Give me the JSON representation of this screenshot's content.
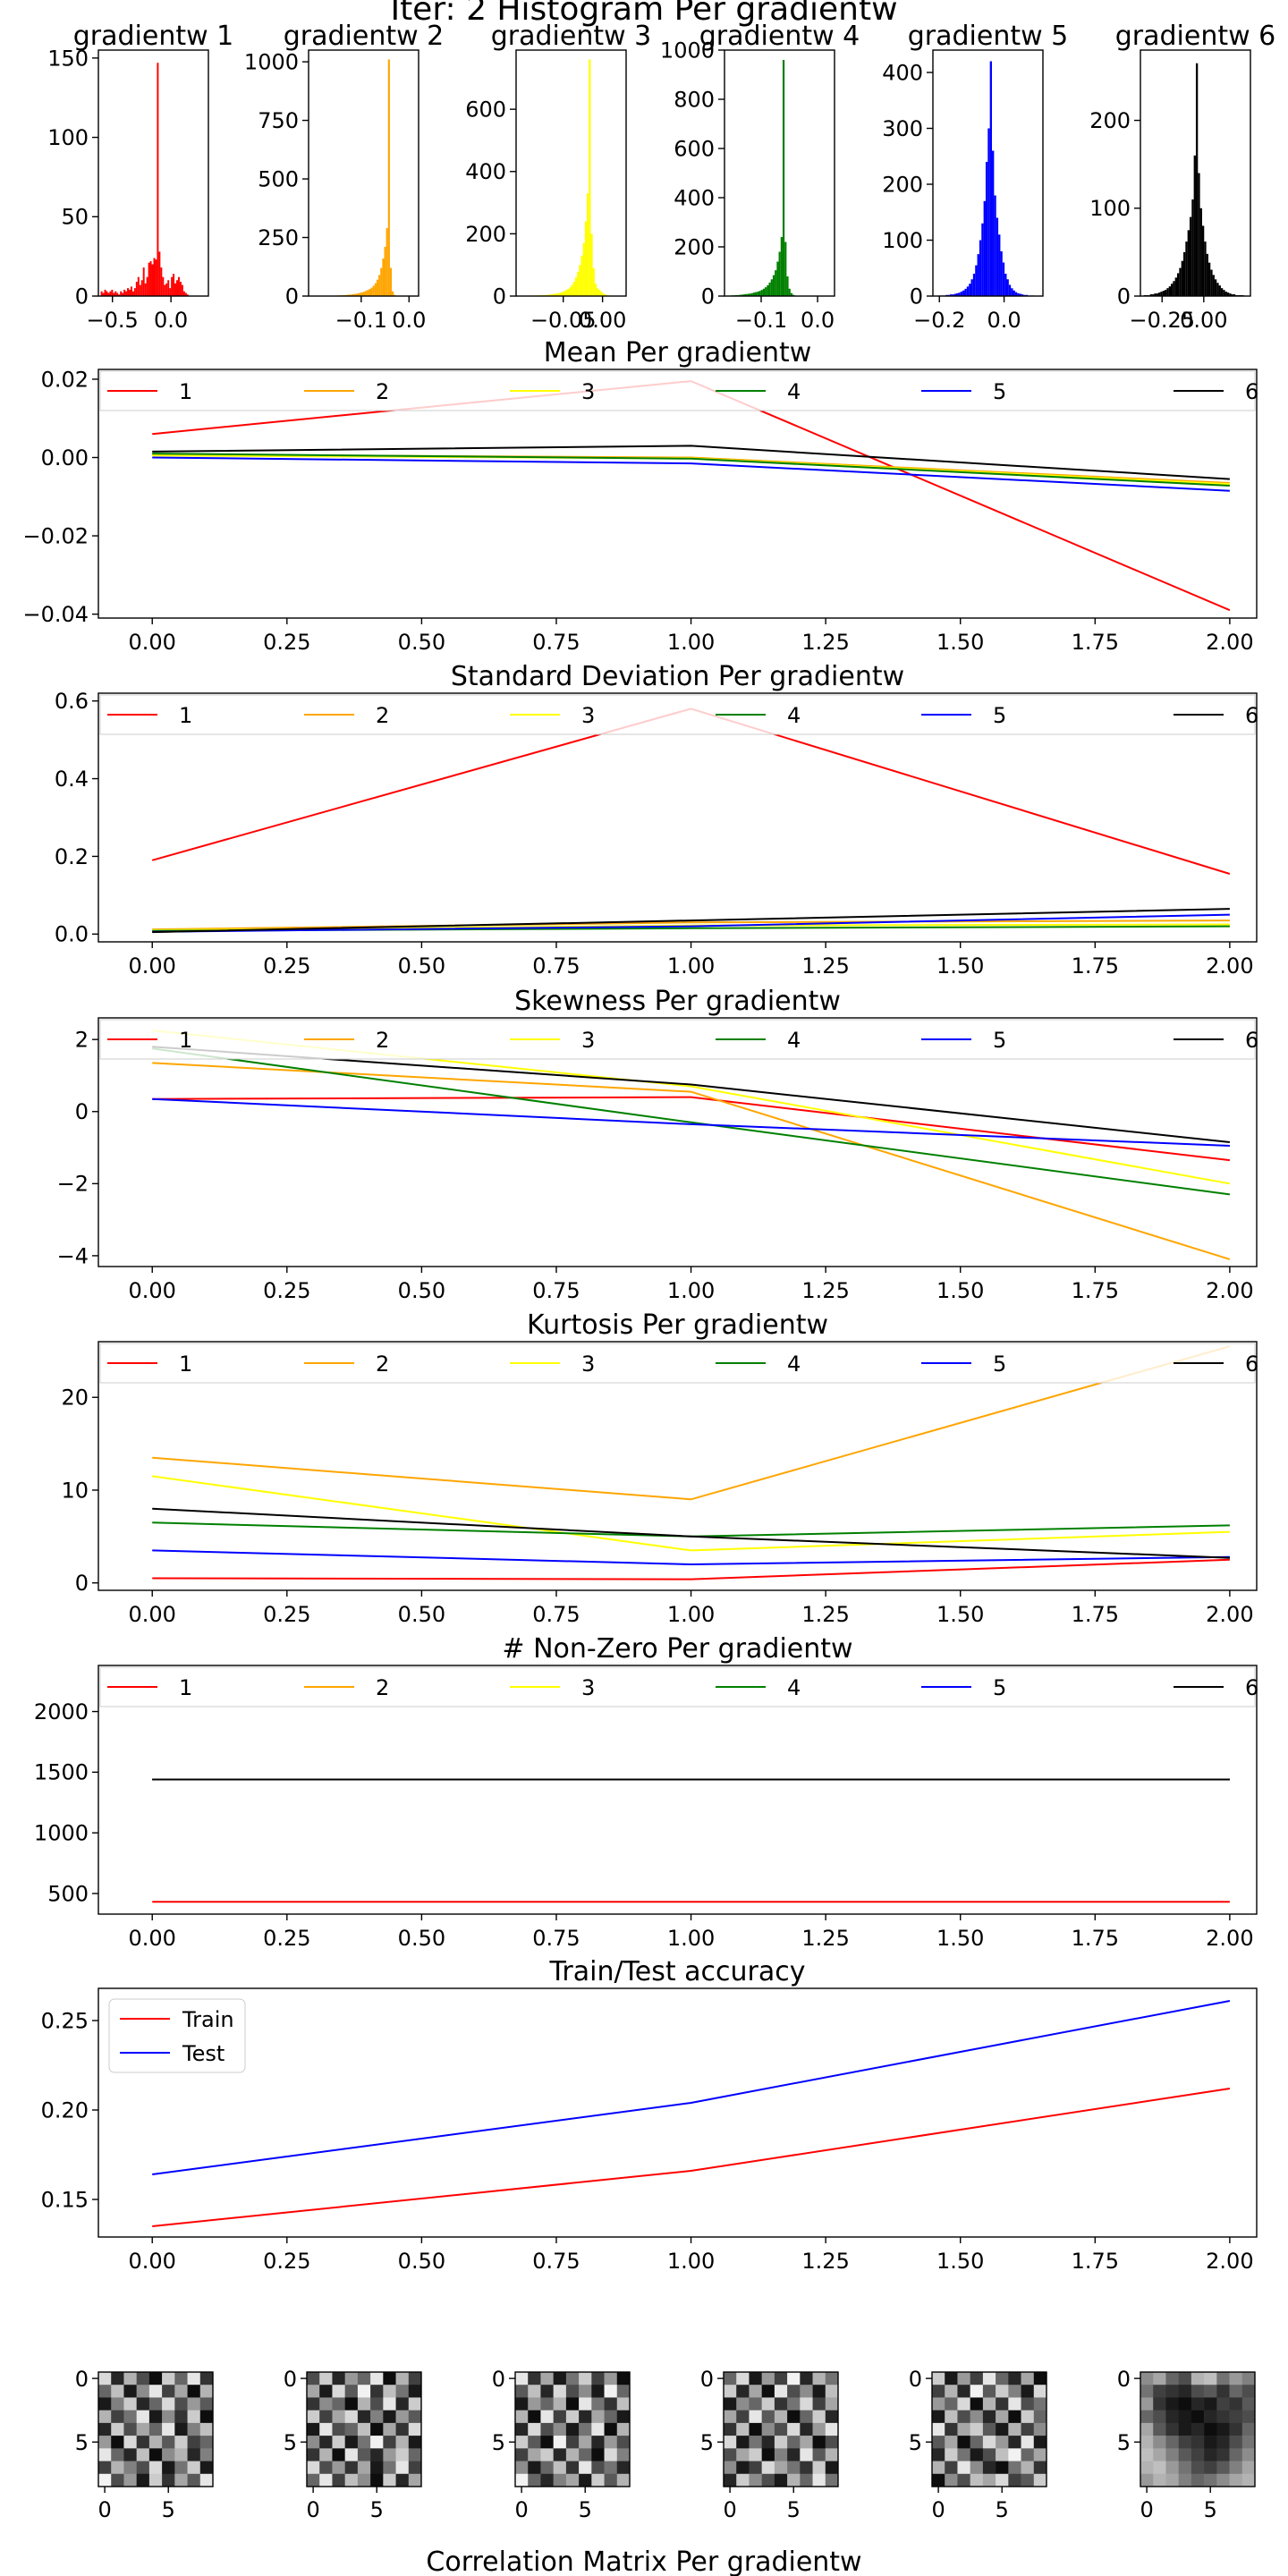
{
  "suptitle": "Iter: 2 Histogram Per gradientw",
  "footer_title": "Correlation Matrix Per gradientw",
  "colors": {
    "series": [
      "#ff0000",
      "#ffa500",
      "#ffff00",
      "#008000",
      "#0000ff",
      "#000000"
    ],
    "train": "#ff0000",
    "test": "#0000ff"
  },
  "chart_data": [
    {
      "type": "histogram",
      "title": "gradientw 1",
      "color": "#ff0000",
      "xlim": [
        -0.62,
        0.32
      ],
      "ylim": [
        0,
        155
      ],
      "xticks": [
        -0.5,
        0.0
      ],
      "xtick_labels": [
        "−0.5",
        "0.0"
      ],
      "yticks": [
        0,
        50,
        100,
        150
      ],
      "ytick_labels": [
        "0",
        "50",
        "100",
        "150"
      ],
      "bin_start": -0.6,
      "bin_width": 0.015,
      "counts": [
        3,
        2,
        4,
        3,
        2,
        3,
        4,
        2,
        3,
        2,
        1,
        3,
        2,
        4,
        3,
        5,
        4,
        6,
        3,
        5,
        9,
        12,
        7,
        10,
        18,
        8,
        12,
        21,
        22,
        20,
        24,
        23,
        147,
        28,
        18,
        12,
        7,
        8,
        10,
        5,
        12,
        14,
        8,
        10,
        12,
        9,
        7,
        3,
        2,
        1
      ]
    },
    {
      "type": "histogram",
      "title": "gradientw 2",
      "color": "#ffa500",
      "xlim": [
        -0.21,
        0.02
      ],
      "ylim": [
        0,
        1050
      ],
      "xticks": [
        -0.1,
        0.0
      ],
      "xtick_labels": [
        "−0.1",
        "0.0"
      ],
      "yticks": [
        0,
        250,
        500,
        750,
        1000
      ],
      "ytick_labels": [
        "0",
        "250",
        "500",
        "750",
        "1000"
      ],
      "bin_start": -0.2,
      "bin_width": 0.004,
      "counts": [
        1,
        1,
        0,
        1,
        1,
        1,
        1,
        2,
        1,
        1,
        2,
        2,
        2,
        3,
        3,
        4,
        4,
        5,
        6,
        6,
        8,
        9,
        10,
        12,
        14,
        16,
        18,
        22,
        26,
        30,
        36,
        44,
        55,
        70,
        90,
        120,
        160,
        210,
        290,
        1010,
        120,
        20,
        5,
        2,
        1,
        0,
        0,
        0,
        0,
        0
      ]
    },
    {
      "type": "histogram",
      "title": "gradientw 3",
      "color": "#ffff00",
      "xlim": [
        -0.11,
        0.03
      ],
      "ylim": [
        0,
        790
      ],
      "xticks": [
        -0.05,
        0.0
      ],
      "xtick_labels": [
        "−0.05",
        "0.00"
      ],
      "yticks": [
        0,
        200,
        400,
        600
      ],
      "ytick_labels": [
        "0",
        "200",
        "400",
        "600"
      ],
      "bin_start": -0.1,
      "bin_width": 0.0025,
      "counts": [
        1,
        1,
        1,
        1,
        2,
        2,
        2,
        2,
        3,
        3,
        3,
        4,
        4,
        5,
        6,
        7,
        8,
        9,
        11,
        13,
        16,
        19,
        23,
        28,
        36,
        46,
        60,
        78,
        100,
        130,
        170,
        240,
        330,
        760,
        200,
        90,
        40,
        25,
        20,
        14,
        8,
        5,
        3,
        2,
        1,
        0,
        0,
        0,
        0,
        0
      ]
    },
    {
      "type": "histogram",
      "title": "gradientw 4",
      "color": "#008000",
      "xlim": [
        -0.165,
        0.03
      ],
      "ylim": [
        0,
        1000
      ],
      "xticks": [
        -0.1,
        0.0
      ],
      "xtick_labels": [
        "−0.1",
        "0.0"
      ],
      "yticks": [
        0,
        200,
        400,
        600,
        800,
        1000
      ],
      "ytick_labels": [
        "0",
        "200",
        "400",
        "600",
        "800",
        "1000"
      ],
      "bin_start": -0.16,
      "bin_width": 0.0035,
      "counts": [
        2,
        2,
        3,
        3,
        4,
        4,
        5,
        6,
        7,
        8,
        9,
        10,
        12,
        14,
        16,
        18,
        21,
        25,
        30,
        36,
        44,
        55,
        68,
        85,
        105,
        140,
        180,
        240,
        960,
        220,
        80,
        30,
        12,
        5,
        2,
        1,
        0,
        0,
        0,
        0,
        0,
        0,
        0,
        0,
        0,
        0,
        0,
        0,
        0,
        0
      ]
    },
    {
      "type": "histogram",
      "title": "gradientw 5",
      "color": "#0000ff",
      "xlim": [
        -0.22,
        0.12
      ],
      "ylim": [
        0,
        440
      ],
      "xticks": [
        -0.2,
        0.0
      ],
      "xtick_labels": [
        "−0.2",
        "0.0"
      ],
      "yticks": [
        0,
        100,
        200,
        300,
        400
      ],
      "ytick_labels": [
        "0",
        "100",
        "200",
        "300",
        "400"
      ],
      "bin_start": -0.2,
      "bin_width": 0.0065,
      "counts": [
        1,
        1,
        1,
        2,
        2,
        3,
        3,
        4,
        5,
        6,
        8,
        10,
        13,
        17,
        22,
        30,
        40,
        55,
        75,
        100,
        130,
        170,
        240,
        300,
        420,
        260,
        180,
        140,
        110,
        80,
        60,
        40,
        30,
        20,
        14,
        10,
        7,
        5,
        4,
        3,
        2,
        2,
        1,
        1,
        1,
        0,
        0,
        0,
        0,
        0
      ]
    },
    {
      "type": "histogram",
      "title": "gradientw 6",
      "color": "#000000",
      "xlim": [
        -0.38,
        0.28
      ],
      "ylim": [
        0,
        280
      ],
      "xticks": [
        -0.25,
        0.0
      ],
      "xtick_labels": [
        "−0.25",
        "0.00"
      ],
      "yticks": [
        0,
        100,
        200
      ],
      "ytick_labels": [
        "0",
        "100",
        "200"
      ],
      "bin_start": -0.36,
      "bin_width": 0.0125,
      "counts": [
        1,
        1,
        1,
        2,
        2,
        3,
        3,
        4,
        5,
        6,
        7,
        9,
        11,
        14,
        17,
        21,
        26,
        32,
        40,
        50,
        62,
        75,
        90,
        110,
        160,
        265,
        140,
        100,
        80,
        62,
        48,
        38,
        30,
        24,
        19,
        15,
        12,
        9,
        7,
        5,
        4,
        3,
        2,
        2,
        1,
        1,
        1,
        1,
        0,
        0
      ]
    },
    {
      "type": "line",
      "title": "Mean Per gradientw",
      "x": [
        0,
        1,
        2
      ],
      "xlim": [
        -0.1,
        2.05
      ],
      "ylim": [
        -0.041,
        0.0225
      ],
      "xticks": [
        0,
        0.25,
        0.5,
        0.75,
        1.0,
        1.25,
        1.5,
        1.75,
        2.0
      ],
      "xtick_labels": [
        "0.00",
        "0.25",
        "0.50",
        "0.75",
        "1.00",
        "1.25",
        "1.50",
        "1.75",
        "2.00"
      ],
      "yticks": [
        -0.04,
        -0.02,
        0.0,
        0.02
      ],
      "ytick_labels": [
        "−0.04",
        "−0.02",
        "0.00",
        "0.02"
      ],
      "legend": [
        "1",
        "2",
        "3",
        "4",
        "5",
        "6"
      ],
      "legend_loc": "upper",
      "series": [
        {
          "name": "1",
          "values": [
            0.006,
            0.0195,
            -0.039
          ]
        },
        {
          "name": "2",
          "values": [
            0.0008,
            0.0,
            -0.0065
          ]
        },
        {
          "name": "3",
          "values": [
            0.0005,
            -0.0002,
            -0.0068
          ]
        },
        {
          "name": "4",
          "values": [
            0.001,
            -0.0003,
            -0.0072
          ]
        },
        {
          "name": "5",
          "values": [
            0.0,
            -0.0015,
            -0.0085
          ]
        },
        {
          "name": "6",
          "values": [
            0.0015,
            0.003,
            -0.0055
          ]
        }
      ]
    },
    {
      "type": "line",
      "title": "Standard Deviation Per gradientw",
      "x": [
        0,
        1,
        2
      ],
      "xlim": [
        -0.1,
        2.05
      ],
      "ylim": [
        -0.02,
        0.62
      ],
      "xticks": [
        0,
        0.25,
        0.5,
        0.75,
        1.0,
        1.25,
        1.5,
        1.75,
        2.0
      ],
      "xtick_labels": [
        "0.00",
        "0.25",
        "0.50",
        "0.75",
        "1.00",
        "1.25",
        "1.50",
        "1.75",
        "2.00"
      ],
      "yticks": [
        0.0,
        0.2,
        0.4,
        0.6
      ],
      "ytick_labels": [
        "0.0",
        "0.2",
        "0.4",
        "0.6"
      ],
      "legend": [
        "1",
        "2",
        "3",
        "4",
        "5",
        "6"
      ],
      "legend_loc": "upper",
      "series": [
        {
          "name": "1",
          "values": [
            0.19,
            0.58,
            0.155
          ]
        },
        {
          "name": "2",
          "values": [
            0.012,
            0.03,
            0.035
          ]
        },
        {
          "name": "3",
          "values": [
            0.01,
            0.022,
            0.025
          ]
        },
        {
          "name": "4",
          "values": [
            0.008,
            0.015,
            0.02
          ]
        },
        {
          "name": "5",
          "values": [
            0.006,
            0.02,
            0.05
          ]
        },
        {
          "name": "6",
          "values": [
            0.005,
            0.035,
            0.065
          ]
        }
      ]
    },
    {
      "type": "line",
      "title": "Skewness Per gradientw",
      "x": [
        0,
        1,
        2
      ],
      "xlim": [
        -0.1,
        2.05
      ],
      "ylim": [
        -4.3,
        2.6
      ],
      "xticks": [
        0,
        0.25,
        0.5,
        0.75,
        1.0,
        1.25,
        1.5,
        1.75,
        2.0
      ],
      "xtick_labels": [
        "0.00",
        "0.25",
        "0.50",
        "0.75",
        "1.00",
        "1.25",
        "1.50",
        "1.75",
        "2.00"
      ],
      "yticks": [
        -4,
        -2,
        0,
        2
      ],
      "ytick_labels": [
        "−4",
        "−2",
        "0",
        "2"
      ],
      "legend": [
        "1",
        "2",
        "3",
        "4",
        "5",
        "6"
      ],
      "legend_loc": "upper",
      "series": [
        {
          "name": "1",
          "values": [
            0.35,
            0.4,
            -1.35
          ]
        },
        {
          "name": "2",
          "values": [
            1.35,
            0.55,
            -4.1
          ]
        },
        {
          "name": "3",
          "values": [
            2.25,
            0.7,
            -2.0
          ]
        },
        {
          "name": "4",
          "values": [
            1.75,
            -0.3,
            -2.3
          ]
        },
        {
          "name": "5",
          "values": [
            0.35,
            -0.35,
            -0.95
          ]
        },
        {
          "name": "6",
          "values": [
            1.8,
            0.75,
            -0.85
          ]
        }
      ]
    },
    {
      "type": "line",
      "title": "Kurtosis Per gradientw",
      "x": [
        0,
        1,
        2
      ],
      "xlim": [
        -0.1,
        2.05
      ],
      "ylim": [
        -0.8,
        26.0
      ],
      "xticks": [
        0,
        0.25,
        0.5,
        0.75,
        1.0,
        1.25,
        1.5,
        1.75,
        2.0
      ],
      "xtick_labels": [
        "0.00",
        "0.25",
        "0.50",
        "0.75",
        "1.00",
        "1.25",
        "1.50",
        "1.75",
        "2.00"
      ],
      "yticks": [
        0,
        10,
        20
      ],
      "ytick_labels": [
        "0",
        "10",
        "20"
      ],
      "legend": [
        "1",
        "2",
        "3",
        "4",
        "5",
        "6"
      ],
      "legend_loc": "upper",
      "series": [
        {
          "name": "1",
          "values": [
            0.5,
            0.4,
            2.5
          ]
        },
        {
          "name": "2",
          "values": [
            13.5,
            9.0,
            25.5
          ]
        },
        {
          "name": "3",
          "values": [
            11.5,
            3.5,
            5.5
          ]
        },
        {
          "name": "4",
          "values": [
            6.5,
            5.0,
            6.2
          ]
        },
        {
          "name": "5",
          "values": [
            3.5,
            2.0,
            2.8
          ]
        },
        {
          "name": "6",
          "values": [
            8.0,
            5.0,
            2.7
          ]
        }
      ]
    },
    {
      "type": "line",
      "title": "# Non-Zero Per gradientw",
      "x": [
        0,
        1,
        2
      ],
      "xlim": [
        -0.1,
        2.05
      ],
      "ylim": [
        330,
        2380
      ],
      "xticks": [
        0,
        0.25,
        0.5,
        0.75,
        1.0,
        1.25,
        1.5,
        1.75,
        2.0
      ],
      "xtick_labels": [
        "0.00",
        "0.25",
        "0.50",
        "0.75",
        "1.00",
        "1.25",
        "1.50",
        "1.75",
        "2.00"
      ],
      "yticks": [
        500,
        1000,
        1500,
        2000
      ],
      "ytick_labels": [
        "500",
        "1000",
        "1500",
        "2000"
      ],
      "legend": [
        "1",
        "2",
        "3",
        "4",
        "5",
        "6"
      ],
      "legend_loc": "upper",
      "series": [
        {
          "name": "1",
          "values": [
            432,
            432,
            432
          ]
        },
        {
          "name": "2",
          "values": [
            1440,
            1440,
            1440
          ]
        },
        {
          "name": "3",
          "values": [
            1440,
            1440,
            1440
          ]
        },
        {
          "name": "4",
          "values": [
            1440,
            1440,
            1440
          ]
        },
        {
          "name": "5",
          "values": [
            1440,
            1440,
            1440
          ]
        },
        {
          "name": "6",
          "values": [
            1440,
            1440,
            1440
          ]
        }
      ]
    },
    {
      "type": "line",
      "title": "Train/Test accuracy",
      "x": [
        0,
        1,
        2
      ],
      "xlim": [
        -0.1,
        2.05
      ],
      "ylim": [
        0.129,
        0.268
      ],
      "xticks": [
        0,
        0.25,
        0.5,
        0.75,
        1.0,
        1.25,
        1.5,
        1.75,
        2.0
      ],
      "xtick_labels": [
        "0.00",
        "0.25",
        "0.50",
        "0.75",
        "1.00",
        "1.25",
        "1.50",
        "1.75",
        "2.00"
      ],
      "yticks": [
        0.15,
        0.2,
        0.25
      ],
      "ytick_labels": [
        "0.15",
        "0.20",
        "0.25"
      ],
      "legend": [
        "Train",
        "Test"
      ],
      "legend_loc": "upper left",
      "series": [
        {
          "name": "Train",
          "values": [
            0.135,
            0.166,
            0.212
          ]
        },
        {
          "name": "Test",
          "values": [
            0.164,
            0.204,
            0.261
          ]
        }
      ]
    },
    {
      "type": "heatmap",
      "grid": [
        9,
        9
      ],
      "xticks": [
        0,
        5
      ],
      "xtick_labels": [
        "0",
        "5"
      ],
      "yticks": [
        0,
        5
      ],
      "ytick_labels": [
        "0",
        "5"
      ],
      "matrices": [
        "0.15,0.85,0.3,0.7,0.95,0.2,0.6,0.1,0.8,0.6,0.25,0.9,0.45,0.1,0.75,0.35,0.95,0.3,0.9,0.5,0.2,0.85,0.6,0.15,0.7,0.4,0.65,0.3,0.75,0.55,0.1,0.9,0.45,0.8,0.2,0.95,0.85,0.2,0.7,0.35,0.6,0.1,0.9,0.5,0.25,0.4,0.95,0.15,0.8,0.3,0.65,0.2,0.75,0.6,0.1,0.6,0.85,0.25,0.95,0.45,0.3,0.85,0.5,0.75,0.3,0.5,0.7,0.15,0.9,0.55,0.2,0.9,0.05,0.7,0.4,0.9,0.2,0.8,0.35,0.65,0.1",
        "0.7,0.2,0.85,0.4,0.6,0.1,0.95,0.3,0.75,0.35,0.9,0.15,0.65,0.05,0.8,0.25,0.55,0.9,0.8,0.45,0.6,0.95,0.3,0.7,0.1,0.85,0.2,0.2,0.75,0.35,0.15,0.85,0.5,0.9,0.4,0.65,0.9,0.1,0.7,0.6,0.25,0.95,0.35,0.8,0.15,0.45,0.85,0.2,0.9,0.55,0.05,0.75,0.3,0.9,0.8,0.3,0.95,0.1,0.65,0.85,0.4,0.2,0.6,0.15,0.7,0.4,0.8,0.35,0.9,0.55,0.1,0.75,0.6,0.1,0.75,0.25,0.45,0.95,0.2,0.85,0.35",
        "0.1,0.8,0.35,0.9,0.55,0.2,0.75,0.4,0.95,0.65,0.25,0.85,0.15,0.7,0.45,0.9,0.05,0.6,0.9,0.4,0.6,0.3,0.95,0.1,0.55,0.8,0.25,0.3,0.95,0.1,0.75,0.2,0.85,0.35,0.6,0.9,0.85,0.15,0.7,0.45,0.9,0.55,0.1,0.95,0.3,0.2,0.65,0.95,0.05,0.75,0.35,0.85,0.4,0.7,0.75,0.35,0.2,0.85,0.3,0.6,0.95,0.15,0.5,0.45,0.9,0.6,0.25,0.8,0.1,0.7,0.55,0.85,0.05,0.6,0.85,0.5,0.35,0.9,0.2,0.65,0.3",
        "0.6,0.15,0.9,0.4,0.75,0.05,0.85,0.3,0.55,0.2,0.85,0.35,0.95,0.1,0.7,0.45,0.9,0.25,0.9,0.45,0.6,0.2,0.8,0.55,0.15,0.75,0.35,0.35,0.75,0.1,0.65,0.3,0.95,0.6,0.2,0.85,0.8,0.25,0.95,0.45,0.7,0.15,0.85,0.4,0.1,0.15,0.9,0.55,0.85,0.2,0.6,0.35,0.95,0.7,0.7,0.35,0.2,0.95,0.5,0.85,0.1,0.65,0.3,0.45,0.9,0.75,0.15,0.35,0.55,0.8,0.2,0.9,0.85,0.2,0.45,0.7,0.9,0.3,0.6,0.1,0.55",
        "0.2,0.9,0.4,0.75,0.1,0.6,0.85,0.35,0.95,0.75,0.3,0.85,0.05,0.65,0.2,0.5,0.9,0.15,0.4,0.6,0.15,0.95,0.3,0.8,0.1,0.7,0.55,0.9,0.25,0.7,0.45,0.85,0.35,0.95,0.2,0.6,0.1,0.8,0.35,0.2,0.65,0.9,0.3,0.75,0.45,0.65,0.35,0.95,0.6,0.15,0.4,0.85,0.1,0.9,0.85,0.2,0.55,0.9,0.7,0.25,0.05,0.6,0.35,0.3,0.75,0.1,0.45,0.85,0.95,0.55,0.3,0.8,0.95,0.45,0.7,0.25,0.35,0.15,0.75,0.65,0.2",
        "0.45,0.35,0.6,0.7,0.3,0.25,0.55,0.4,0.5,0.55,0.75,0.8,0.85,0.7,0.65,0.8,0.6,0.7,0.4,0.8,0.9,0.95,0.85,0.9,0.75,0.8,0.65,0.6,0.7,0.85,0.9,0.95,0.85,0.8,0.75,0.7,0.35,0.65,0.8,0.9,0.85,0.95,0.9,0.8,0.6,0.3,0.45,0.6,0.75,0.8,0.9,0.85,0.7,0.55,0.25,0.35,0.5,0.65,0.75,0.85,0.8,0.6,0.45,0.3,0.25,0.4,0.55,0.7,0.75,0.65,0.5,0.35,0.4,0.3,0.35,0.5,0.6,0.55,0.45,0.35,0.3"
      ]
    }
  ]
}
